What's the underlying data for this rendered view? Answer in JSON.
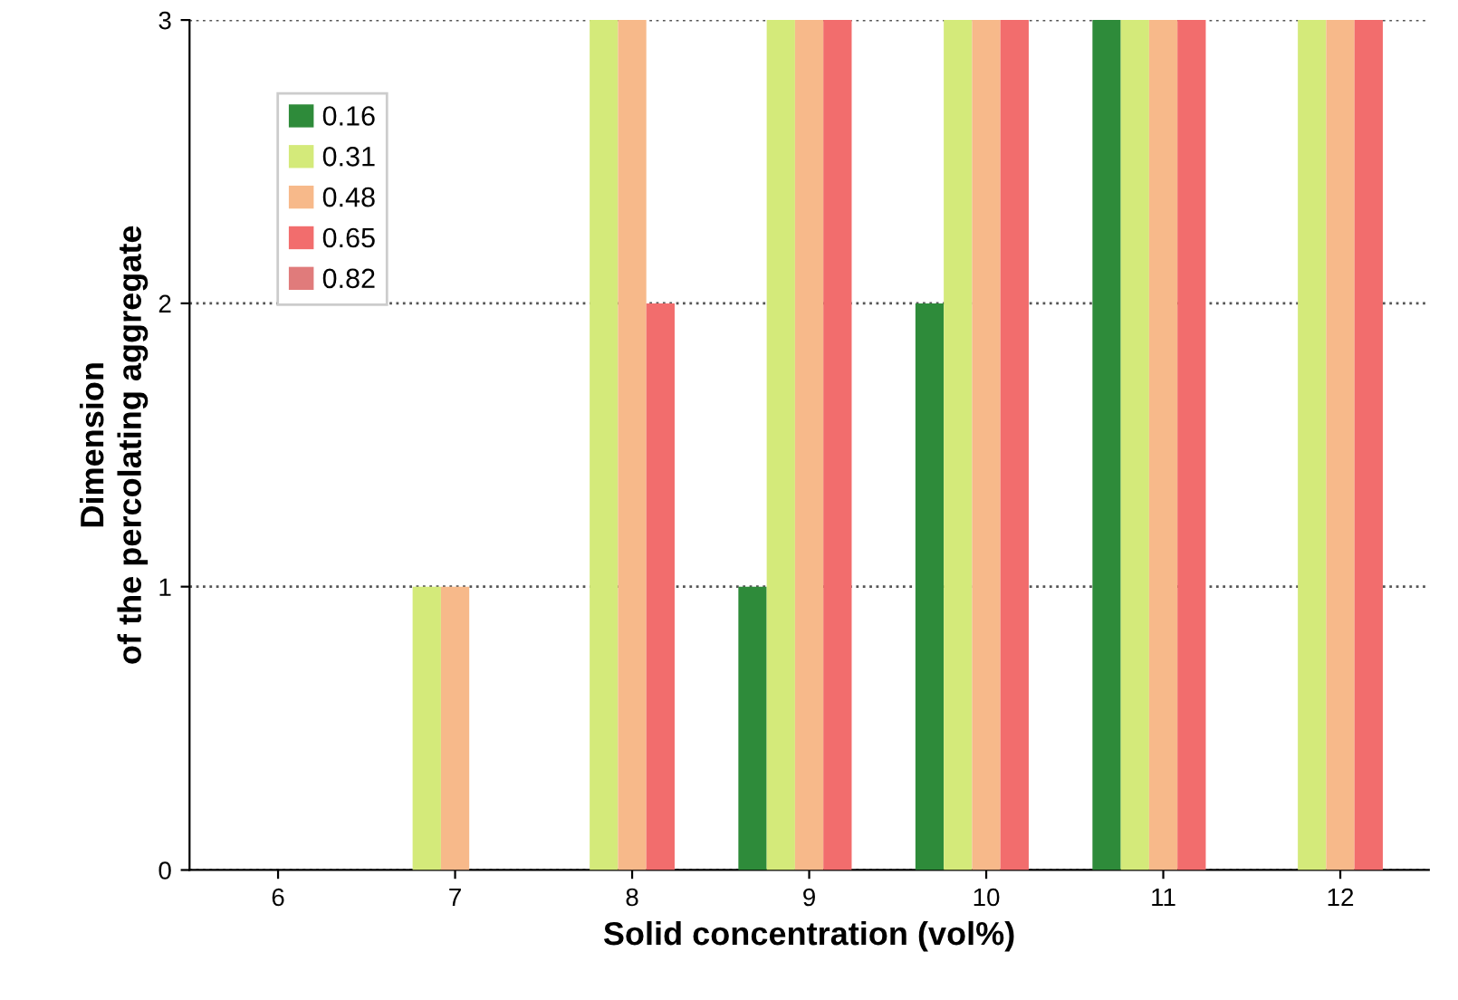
{
  "chart_data": {
    "type": "bar",
    "xlabel": "Solid concentration (vol%)",
    "ylabel": "Dimension\nof the percolating aggregate",
    "categories": [
      "6",
      "7",
      "8",
      "9",
      "10",
      "11",
      "12"
    ],
    "series": [
      {
        "name": "0.16",
        "color": "#2e8b3a",
        "values": [
          0,
          0,
          0,
          1,
          2,
          3,
          0
        ]
      },
      {
        "name": "0.31",
        "color": "#d4ea7a",
        "values": [
          0,
          1,
          3,
          3,
          3,
          3,
          3
        ]
      },
      {
        "name": "0.48",
        "color": "#f7b98a",
        "values": [
          0,
          1,
          3,
          3,
          3,
          3,
          3
        ]
      },
      {
        "name": "0.65",
        "color": "#f26d6d",
        "values": [
          0,
          0,
          2,
          3,
          3,
          3,
          3
        ]
      },
      {
        "name": "0.82",
        "color": "#e07b7b",
        "values": [
          0,
          0,
          0,
          0,
          0,
          0,
          0
        ]
      }
    ],
    "ylim": [
      0,
      3
    ],
    "yticks": [
      0,
      1,
      2,
      3
    ],
    "grid": "y",
    "legend": "top left"
  }
}
